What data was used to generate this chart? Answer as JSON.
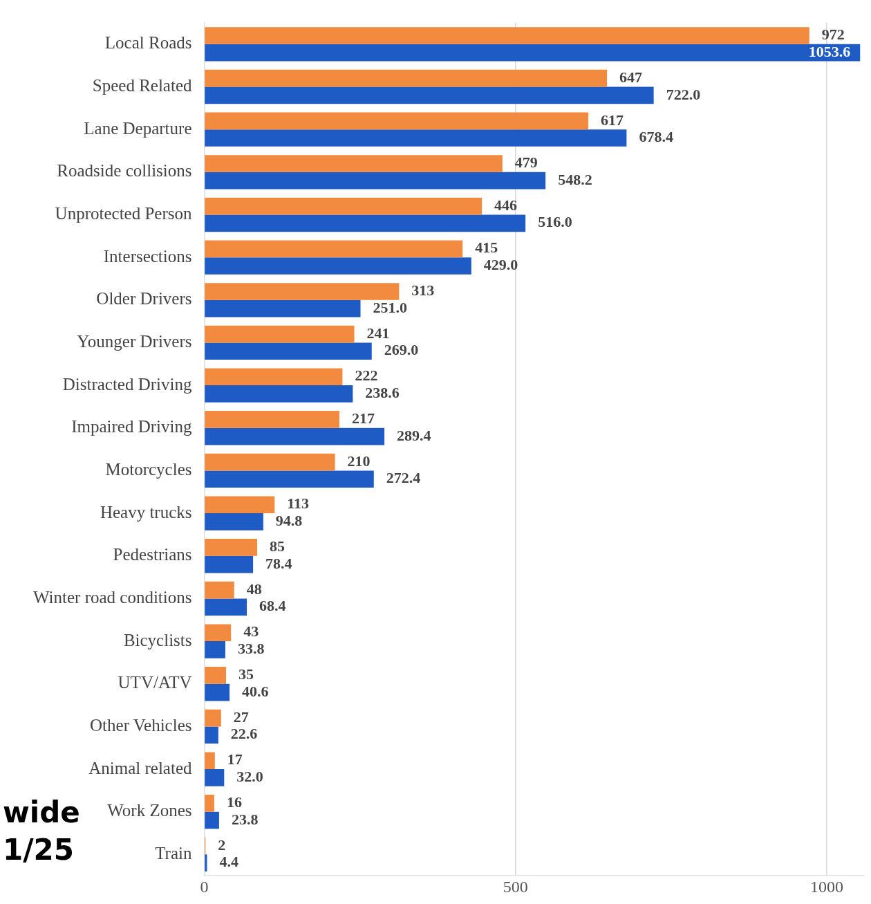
{
  "chart_data": {
    "type": "bar",
    "orientation": "horizontal",
    "categories": [
      "Local Roads",
      "Speed Related",
      "Lane Departure",
      "Roadside collisions",
      "Unprotected Person",
      "Intersections",
      "Older Drivers",
      "Younger Drivers",
      "Distracted Driving",
      "Impaired Driving",
      "Motorcycles",
      "Heavy trucks",
      "Pedestrians",
      "Winter road conditions",
      "Bicyclists",
      "UTV/ATV",
      "Other Vehicles",
      "Animal related",
      "Work Zones",
      "Train"
    ],
    "series": [
      {
        "color": "#f28a40",
        "values": [
          972,
          647,
          617,
          479,
          446,
          415,
          313,
          241,
          222,
          217,
          210,
          113,
          85,
          48,
          43,
          35,
          27,
          17,
          16,
          2
        ],
        "value_labels": [
          "972",
          "647",
          "617",
          "479",
          "446",
          "415",
          "313",
          "241",
          "222",
          "217",
          "210",
          "113",
          "85",
          "48",
          "43",
          "35",
          "27",
          "17",
          "16",
          "2"
        ]
      },
      {
        "color": "#1f5bc4",
        "values": [
          1053.6,
          722.0,
          678.4,
          548.2,
          516.0,
          429.0,
          251.0,
          269.0,
          238.6,
          289.4,
          272.4,
          94.8,
          78.4,
          68.4,
          33.8,
          40.6,
          22.6,
          32.0,
          23.8,
          4.4
        ],
        "value_labels": [
          "1053.6",
          "722.0",
          "678.4",
          "548.2",
          "516.0",
          "429.0",
          "251.0",
          "269.0",
          "238.6",
          "289.4",
          "272.4",
          "94.8",
          "78.4",
          "68.4",
          "33.8",
          "40.6",
          "22.6",
          "32.0",
          "23.8",
          "4.4"
        ]
      }
    ],
    "xlim": [
      0,
      1060
    ],
    "xticks": [
      0,
      500,
      1000
    ],
    "grid": "x",
    "annotations": [
      "wide",
      "1/25"
    ]
  }
}
